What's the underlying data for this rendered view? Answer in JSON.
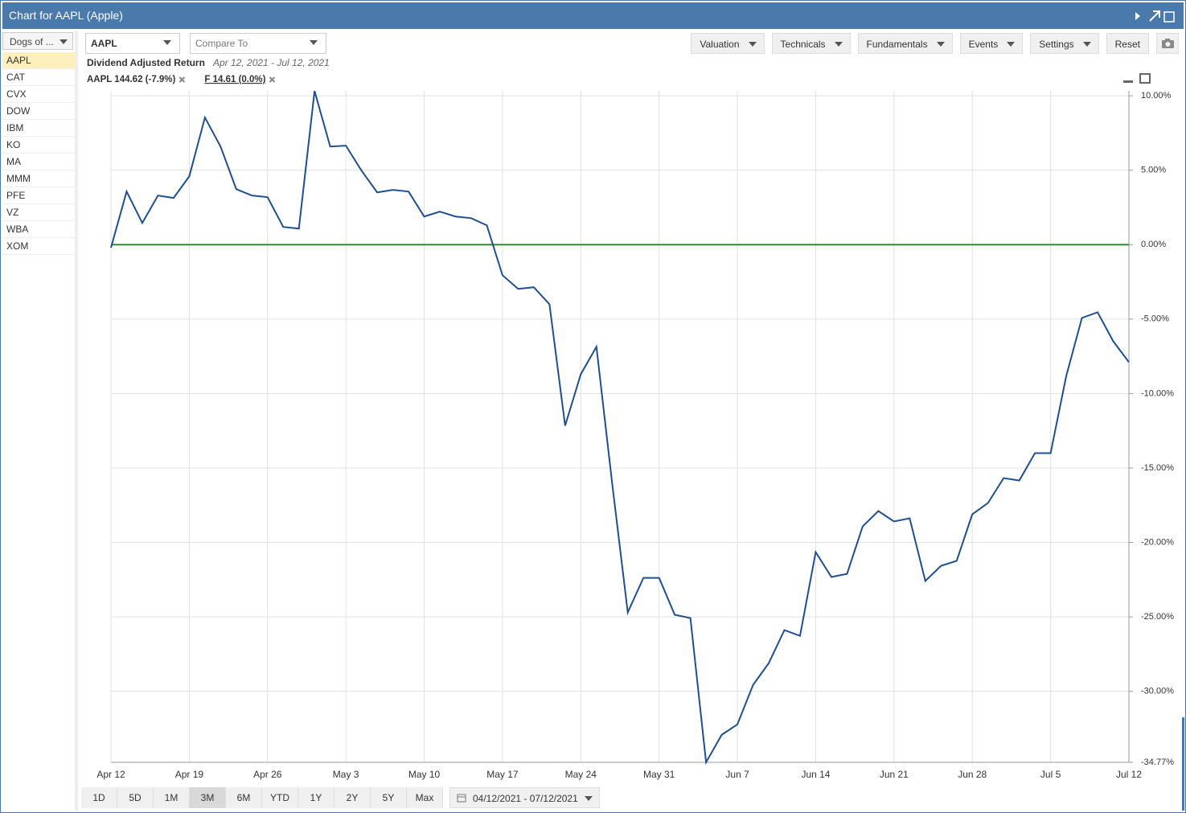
{
  "header": {
    "title": "Chart for AAPL (Apple)"
  },
  "sidebar": {
    "list_select": "Dogs of ...",
    "symbols": [
      "AAPL",
      "CAT",
      "CVX",
      "DOW",
      "IBM",
      "KO",
      "MA",
      "MMM",
      "PFE",
      "VZ",
      "WBA",
      "XOM"
    ]
  },
  "toolbar": {
    "symbol": "AAPL",
    "compare_placeholder": "Compare To",
    "menus": [
      "Valuation",
      "Technicals",
      "Fundamentals",
      "Events",
      "Settings"
    ],
    "reset": "Reset"
  },
  "chart_data": {
    "type": "line",
    "title": "Dividend Adjusted Return",
    "subtitle": "Apr 12, 2021 - Jul 12, 2021",
    "categories": [
      "Apr 12",
      null,
      null,
      null,
      null,
      "Apr 19",
      null,
      null,
      null,
      null,
      "Apr 26",
      null,
      null,
      null,
      null,
      "May 3",
      null,
      null,
      null,
      null,
      "May 10",
      null,
      null,
      null,
      null,
      "May 17",
      null,
      null,
      null,
      null,
      "May 24",
      null,
      null,
      null,
      null,
      "May 31",
      null,
      null,
      null,
      null,
      "Jun 7",
      null,
      null,
      null,
      null,
      "Jun 14",
      null,
      null,
      null,
      null,
      "Jun 21",
      null,
      null,
      null,
      null,
      "Jun 28",
      null,
      null,
      null,
      null,
      "Jul 5",
      null,
      null,
      null,
      null,
      "Jul 12"
    ],
    "series": [
      {
        "name": "AAPL 144.62 (-7.9%)",
        "color": "#1f4f91",
        "values": [
          -0.2,
          3.57,
          1.46,
          3.3,
          3.14,
          4.59,
          8.54,
          6.59,
          3.73,
          3.3,
          3.19,
          1.19,
          1.08,
          10.32,
          6.59,
          6.65,
          4.97,
          3.51,
          3.68,
          3.57,
          1.89,
          2.22,
          1.89,
          1.78,
          1.3,
          -2.05,
          -2.97,
          -2.86,
          -4.0,
          -12.16,
          -8.7,
          -6.86,
          -16.0,
          -24.7,
          -22.38,
          -22.38,
          -24.86,
          -25.08,
          -34.77,
          -32.92,
          -32.22,
          -29.57,
          -28.11,
          -25.89,
          -26.27,
          -20.65,
          -22.32,
          -22.11,
          -18.92,
          -17.89,
          -18.59,
          -18.38,
          -22.59,
          -21.57,
          -21.24,
          -18.11,
          -17.35,
          -15.68,
          -15.84,
          -14.0,
          -14.0,
          -8.81,
          -4.92,
          -4.54,
          -6.49,
          -7.89
        ]
      },
      {
        "name": "F 14.61 (0.0%)",
        "color": "#2e8b34",
        "values": [
          0,
          0,
          0,
          0,
          0,
          0,
          0,
          0,
          0,
          0,
          0,
          0,
          0,
          0,
          0,
          0,
          0,
          0,
          0,
          0,
          0,
          0,
          0,
          0,
          0,
          0,
          0,
          0,
          0,
          0,
          0,
          0,
          0,
          0,
          0,
          0,
          0,
          0,
          0,
          0,
          0,
          0,
          0,
          0,
          0,
          0,
          0,
          0,
          0,
          0,
          0,
          0,
          0,
          0,
          0,
          0,
          0,
          0,
          0,
          0,
          0,
          0,
          0,
          0,
          0,
          0
        ]
      }
    ],
    "ylim": [
      -34.77,
      10.33
    ],
    "yticks": [
      {
        "value": 10,
        "label": "10.00%"
      },
      {
        "value": 5,
        "label": "5.00%"
      },
      {
        "value": 0,
        "label": "0.00%"
      },
      {
        "value": -5,
        "label": "-5.00%"
      },
      {
        "value": -10,
        "label": "-10.00%"
      },
      {
        "value": -15,
        "label": "-15.00%"
      },
      {
        "value": -20,
        "label": "-20.00%"
      },
      {
        "value": -25,
        "label": "-25.00%"
      },
      {
        "value": -30,
        "label": "-30.00%"
      },
      {
        "value": -34.77,
        "label": "-34.77%"
      }
    ],
    "grid": true,
    "yaxis_side": "right"
  },
  "range_buttons": [
    "1D",
    "5D",
    "1M",
    "3M",
    "6M",
    "YTD",
    "1Y",
    "2Y",
    "5Y",
    "Max"
  ],
  "date_range": "04/12/2021 - 07/12/2021"
}
